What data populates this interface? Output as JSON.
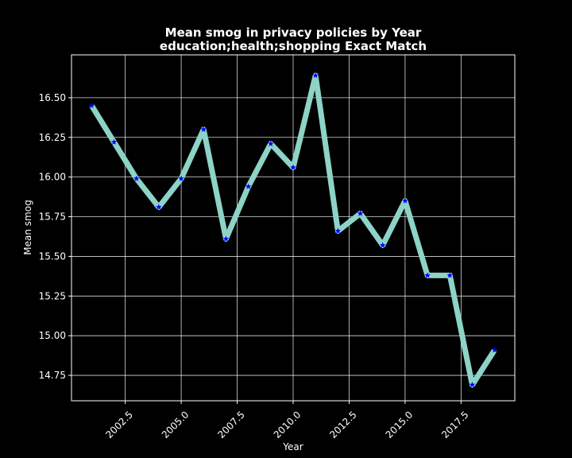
{
  "chart_data": {
    "type": "line",
    "title_line1": "Mean smog in privacy policies by Year",
    "title_line2": "education;health;shopping Exact Match",
    "xlabel": "Year",
    "ylabel": "Mean smog",
    "xlim": [
      2000.1,
      2019.9
    ],
    "ylim": [
      14.59,
      16.77
    ],
    "grid": true,
    "x_ticks": [
      2002.5,
      2005.0,
      2007.5,
      2010.0,
      2012.5,
      2015.0,
      2017.5
    ],
    "x_tick_labels": [
      "2002.5",
      "2005.0",
      "2007.5",
      "2010.0",
      "2012.5",
      "2015.0",
      "2017.5"
    ],
    "y_ticks": [
      14.75,
      15.0,
      15.25,
      15.5,
      15.75,
      16.0,
      16.25,
      16.5
    ],
    "y_tick_labels": [
      "14.75",
      "15.00",
      "15.25",
      "15.50",
      "15.75",
      "16.00",
      "16.25",
      "16.50"
    ],
    "x": [
      2001,
      2002,
      2003,
      2004,
      2005,
      2006,
      2007,
      2008,
      2009,
      2010,
      2011,
      2012,
      2013,
      2014,
      2015,
      2016,
      2017,
      2018,
      2019
    ],
    "y": [
      16.45,
      16.22,
      15.99,
      15.81,
      15.99,
      16.3,
      15.61,
      15.94,
      16.21,
      16.06,
      16.64,
      15.66,
      15.77,
      15.57,
      15.85,
      15.38,
      15.38,
      14.69,
      14.91
    ],
    "line_color": "#8dd3c7",
    "marker_color": "#0000ff",
    "marker": "star",
    "background": "#000000",
    "grid_color": "#ffffff"
  }
}
